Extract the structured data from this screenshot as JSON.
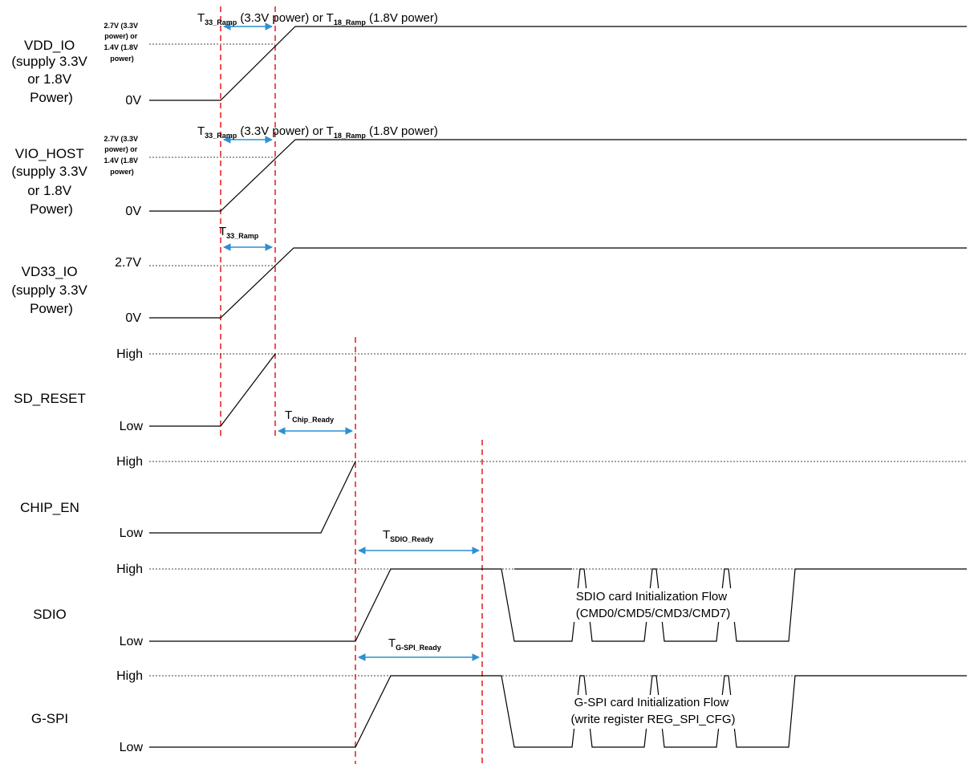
{
  "diagram": {
    "colors": {
      "wave": "#000000",
      "marker": "#e8282a",
      "arrow": "#2f8fd0",
      "dotted": "#444444"
    },
    "signals": [
      {
        "name": [
          "VDD_IO",
          "(supply 3.3V",
          "or 1.8V",
          "Power)"
        ],
        "high_label": [
          "2.7V (3.3V",
          "power) or",
          "1.4V (1.8V",
          "power)"
        ],
        "low_label": "0V"
      },
      {
        "name": [
          "VIO_HOST",
          "(supply 3.3V",
          "or 1.8V",
          "Power)"
        ],
        "high_label": [
          "2.7V (3.3V",
          "power) or",
          "1.4V (1.8V",
          "power)"
        ],
        "low_label": "0V"
      },
      {
        "name": [
          "VD33_IO",
          "(supply 3.3V",
          "Power)"
        ],
        "high_label": "2.7V",
        "low_label": "0V"
      },
      {
        "name": [
          "SD_RESET"
        ],
        "high_label": "High",
        "low_label": "Low"
      },
      {
        "name": [
          "CHIP_EN"
        ],
        "high_label": "High",
        "low_label": "Low"
      },
      {
        "name": [
          "SDIO"
        ],
        "high_label": "High",
        "low_label": "Low"
      },
      {
        "name": [
          "G-SPI"
        ],
        "high_label": "High",
        "low_label": "Low"
      }
    ],
    "annotations": {
      "vdd_ramp": {
        "t": "T",
        "sub1": "33_Ramp",
        "mid": " (3.3V power) or T",
        "sub2": "18_Ramp",
        "end": " (1.8V power)"
      },
      "vio_ramp": {
        "t": "T",
        "sub1": "33_Ramp",
        "mid": " (3.3V power) or T",
        "sub2": "18_Ramp",
        "end": " (1.8V power)"
      },
      "vd33_ramp": {
        "t": "T",
        "sub": "33_Ramp"
      },
      "chip_ready": {
        "t": "T",
        "sub": "Chip_Ready"
      },
      "sdio_ready": {
        "t": "T",
        "sub": "SDIO_Ready"
      },
      "gspi_ready": {
        "t": "T",
        "sub": "G-SPI_Ready"
      }
    },
    "flows": {
      "sdio": [
        "SDIO card Initialization Flow",
        "(CMD0/CMD5/CMD3/CMD7)"
      ],
      "gspi": [
        "G-SPI card Initialization Flow",
        "(write register REG_SPI_CFG)"
      ]
    }
  }
}
